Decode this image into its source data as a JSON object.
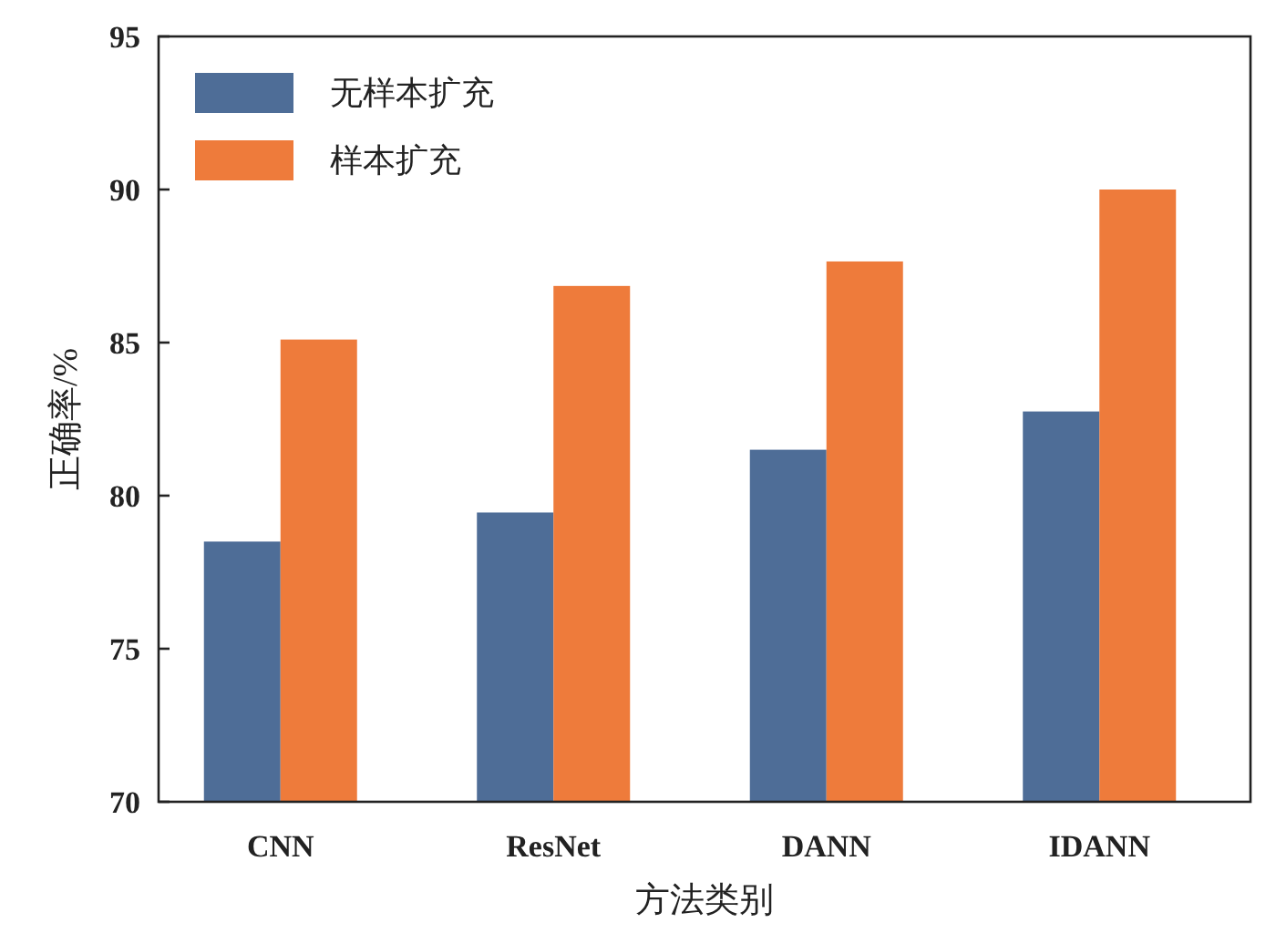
{
  "chart_data": {
    "type": "bar",
    "xlabel": "方法类别",
    "ylabel": "正确率/%",
    "categories": [
      "CNN",
      "ResNet",
      "DANN",
      "IDANN"
    ],
    "series": [
      {
        "name": "无样本扩充",
        "color": "#4e6d97",
        "values": [
          78.5,
          79.45,
          81.5,
          82.75
        ]
      },
      {
        "name": "样本扩充",
        "color": "#ee7b3b",
        "values": [
          85.1,
          86.85,
          87.65,
          90.0
        ]
      }
    ],
    "ylim": [
      70,
      95
    ],
    "yticks": [
      70,
      75,
      80,
      85,
      90,
      95
    ],
    "legend": "top left",
    "grid": false
  }
}
